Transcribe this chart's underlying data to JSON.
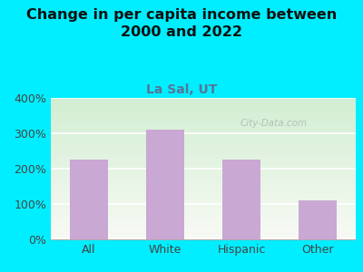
{
  "title": "Change in per capita income between\n2000 and 2022",
  "subtitle": "La Sal, UT",
  "categories": [
    "All",
    "White",
    "Hispanic",
    "Other"
  ],
  "values": [
    225,
    310,
    225,
    110
  ],
  "bar_color": "#c9a8d4",
  "ylim": [
    0,
    400
  ],
  "yticks": [
    0,
    100,
    200,
    300,
    400
  ],
  "ytick_labels": [
    "0%",
    "100%",
    "200%",
    "300%",
    "400%"
  ],
  "title_fontsize": 11.5,
  "subtitle_fontsize": 10,
  "tick_fontsize": 9,
  "bg_outer": "#00eeff",
  "watermark": "City-Data.com",
  "subtitle_color": "#557799",
  "title_color": "#111111",
  "grid_color": "#cccccc"
}
